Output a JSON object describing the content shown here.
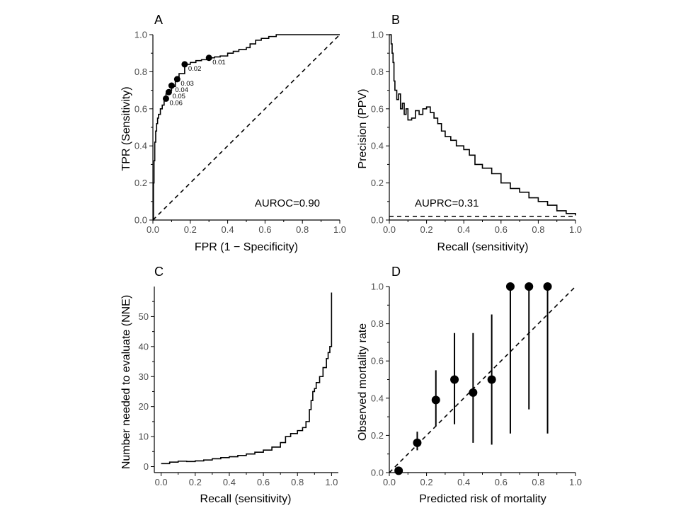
{
  "chart_data": [
    {
      "id": "A",
      "panel_label": "A",
      "type": "line",
      "xlabel": "FPR (1 − Specificity)",
      "ylabel": "TPR (Sensitivity)",
      "xlim": [
        0,
        1
      ],
      "ylim": [
        0,
        1
      ],
      "xticks": [
        "0.0",
        "0.2",
        "0.4",
        "0.6",
        "0.8",
        "1.0"
      ],
      "yticks": [
        "0.0",
        "0.2",
        "0.4",
        "0.6",
        "0.8",
        "1.0"
      ],
      "annotation": "AUROC=0.90",
      "series": [
        {
          "style": "step",
          "x": [
            0,
            0.003,
            0.006,
            0.01,
            0.015,
            0.02,
            0.025,
            0.03,
            0.04,
            0.05,
            0.06,
            0.07,
            0.08,
            0.09,
            0.1,
            0.12,
            0.14,
            0.17,
            0.2,
            0.23,
            0.26,
            0.3,
            0.33,
            0.36,
            0.4,
            0.43,
            0.46,
            0.5,
            0.52,
            0.55,
            0.58,
            0.62,
            0.66,
            0.7,
            0.8,
            0.9,
            1.0
          ],
          "y": [
            0,
            0.2,
            0.32,
            0.42,
            0.48,
            0.52,
            0.55,
            0.57,
            0.6,
            0.62,
            0.65,
            0.68,
            0.69,
            0.7,
            0.72,
            0.75,
            0.79,
            0.84,
            0.85,
            0.86,
            0.865,
            0.875,
            0.88,
            0.885,
            0.9,
            0.91,
            0.92,
            0.93,
            0.95,
            0.97,
            0.98,
            0.99,
            1.0,
            1.0,
            1.0,
            1.0,
            1.0
          ]
        },
        {
          "style": "dashed",
          "x": [
            0,
            1
          ],
          "y": [
            0,
            1
          ]
        }
      ],
      "points": [
        {
          "label": "0.01",
          "x": 0.3,
          "y": 0.875
        },
        {
          "label": "0.02",
          "x": 0.17,
          "y": 0.84
        },
        {
          "label": "0.03",
          "x": 0.13,
          "y": 0.76
        },
        {
          "label": "0.04",
          "x": 0.1,
          "y": 0.725
        },
        {
          "label": "0.05",
          "x": 0.085,
          "y": 0.69
        },
        {
          "label": "0.06",
          "x": 0.07,
          "y": 0.655
        }
      ]
    },
    {
      "id": "B",
      "panel_label": "B",
      "type": "line",
      "xlabel": "Recall (sensitivity)",
      "ylabel": "Precision (PPV)",
      "xlim": [
        0,
        1
      ],
      "ylim": [
        0,
        1
      ],
      "xticks": [
        "0.0",
        "0.2",
        "0.4",
        "0.6",
        "0.8",
        "1.0"
      ],
      "yticks": [
        "0.0",
        "0.2",
        "0.4",
        "0.6",
        "0.8",
        "1.0"
      ],
      "annotation": "AUPRC=0.31",
      "series": [
        {
          "style": "step",
          "x": [
            0,
            0.005,
            0.01,
            0.015,
            0.02,
            0.025,
            0.03,
            0.04,
            0.05,
            0.06,
            0.07,
            0.08,
            0.09,
            0.1,
            0.12,
            0.14,
            0.16,
            0.18,
            0.2,
            0.22,
            0.24,
            0.26,
            0.28,
            0.3,
            0.33,
            0.36,
            0.4,
            0.43,
            0.46,
            0.5,
            0.55,
            0.6,
            0.65,
            0.7,
            0.75,
            0.8,
            0.85,
            0.9,
            0.95,
            1.0
          ],
          "y": [
            1.0,
            1.0,
            0.95,
            0.9,
            0.85,
            0.75,
            0.7,
            0.65,
            0.68,
            0.6,
            0.63,
            0.57,
            0.6,
            0.54,
            0.55,
            0.59,
            0.57,
            0.6,
            0.61,
            0.58,
            0.55,
            0.52,
            0.48,
            0.45,
            0.43,
            0.4,
            0.38,
            0.35,
            0.3,
            0.28,
            0.25,
            0.2,
            0.17,
            0.15,
            0.12,
            0.1,
            0.08,
            0.05,
            0.035,
            0.025
          ]
        },
        {
          "style": "dashed",
          "x": [
            0,
            1
          ],
          "y": [
            0.02,
            0.02
          ]
        }
      ]
    },
    {
      "id": "C",
      "panel_label": "C",
      "type": "line",
      "xlabel": "Recall (sensitivity)",
      "ylabel": "Number needed to evaluate (NNE)",
      "xlim": [
        -0.04,
        1.04
      ],
      "ylim": [
        -2,
        60
      ],
      "xticks": [
        "0.0",
        "0.2",
        "0.4",
        "0.6",
        "0.8",
        "1.0"
      ],
      "yticks": [
        "0",
        "10",
        "20",
        "30",
        "40",
        "50"
      ],
      "series": [
        {
          "style": "step",
          "x": [
            0,
            0.05,
            0.1,
            0.15,
            0.2,
            0.25,
            0.3,
            0.35,
            0.4,
            0.45,
            0.5,
            0.55,
            0.6,
            0.65,
            0.7,
            0.73,
            0.76,
            0.8,
            0.83,
            0.85,
            0.87,
            0.88,
            0.89,
            0.9,
            0.91,
            0.93,
            0.95,
            0.97,
            0.98,
            0.99,
            1.0,
            1.0
          ],
          "y": [
            1.0,
            1.5,
            1.8,
            1.7,
            1.9,
            2.2,
            2.6,
            3.0,
            3.3,
            3.7,
            4.2,
            4.8,
            5.5,
            6.5,
            8.0,
            10.0,
            11.0,
            12.0,
            13.0,
            15.0,
            19.0,
            22.0,
            25.0,
            26.0,
            28.0,
            30.0,
            33.0,
            36.0,
            38.0,
            40.0,
            45.0,
            58.0
          ]
        }
      ]
    },
    {
      "id": "D",
      "panel_label": "D",
      "type": "scatter",
      "xlabel": "Predicted risk of mortality",
      "ylabel": "Observed mortality rate",
      "xlim": [
        0,
        1
      ],
      "ylim": [
        0,
        1
      ],
      "xticks": [
        "0.0",
        "0.2",
        "0.4",
        "0.6",
        "0.8",
        "1.0"
      ],
      "yticks": [
        "0.0",
        "0.2",
        "0.4",
        "0.6",
        "0.8",
        "1.0"
      ],
      "series": [
        {
          "style": "points",
          "x": [
            0.05,
            0.15,
            0.25,
            0.35,
            0.45,
            0.55,
            0.65,
            0.75,
            0.85
          ],
          "y": [
            0.01,
            0.16,
            0.39,
            0.5,
            0.43,
            0.5,
            1.0,
            1.0,
            1.0
          ],
          "lower": [
            0.0,
            0.12,
            0.25,
            0.26,
            0.16,
            0.15,
            0.21,
            0.34,
            0.21
          ],
          "upper": [
            0.02,
            0.22,
            0.55,
            0.75,
            0.75,
            0.85,
            1.0,
            1.0,
            1.0
          ]
        },
        {
          "style": "dashed",
          "x": [
            0,
            1
          ],
          "y": [
            0,
            1
          ]
        }
      ]
    }
  ]
}
